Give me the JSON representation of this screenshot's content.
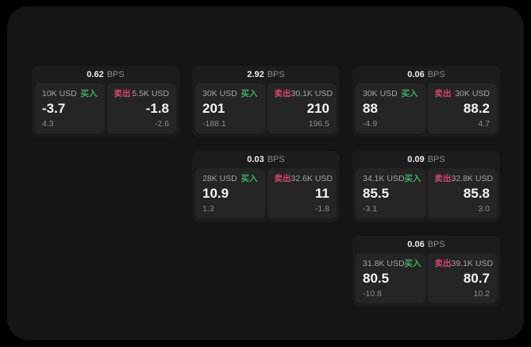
{
  "labels": {
    "buy": "买入",
    "sell": "卖出",
    "bps_unit": "BPS"
  },
  "colors": {
    "buy_green": "#3aae5d",
    "sell_red": "#d4456a"
  },
  "cards": [
    {
      "bps": "0.62",
      "buy": {
        "amount": "10K USD",
        "price": "-3.7",
        "delta": "4.3"
      },
      "sell": {
        "amount": "5.5K USD",
        "price": "-1.8",
        "delta": "-2.6"
      }
    },
    {
      "bps": "2.92",
      "buy": {
        "amount": "30K USD",
        "price": "201",
        "delta": "-188.1"
      },
      "sell": {
        "amount": "30.1K USD",
        "price": "210",
        "delta": "196.5"
      }
    },
    {
      "bps": "0.06",
      "buy": {
        "amount": "30K USD",
        "price": "88",
        "delta": "-4.9"
      },
      "sell": {
        "amount": "30K USD",
        "price": "88.2",
        "delta": "4.7"
      }
    },
    {
      "bps": "0.03",
      "buy": {
        "amount": "28K USD",
        "price": "10.9",
        "delta": "1.3"
      },
      "sell": {
        "amount": "32.6K USD",
        "price": "11",
        "delta": "-1.8"
      }
    },
    {
      "bps": "0.09",
      "buy": {
        "amount": "34.1K USD",
        "price": "85.5",
        "delta": "-3.1"
      },
      "sell": {
        "amount": "32.8K USD",
        "price": "85.8",
        "delta": "3.0"
      }
    },
    {
      "bps": "0.06",
      "buy": {
        "amount": "31.8K USD",
        "price": "80.5",
        "delta": "-10.8"
      },
      "sell": {
        "amount": "39.1K USD",
        "price": "80.7",
        "delta": "10.2"
      }
    }
  ]
}
